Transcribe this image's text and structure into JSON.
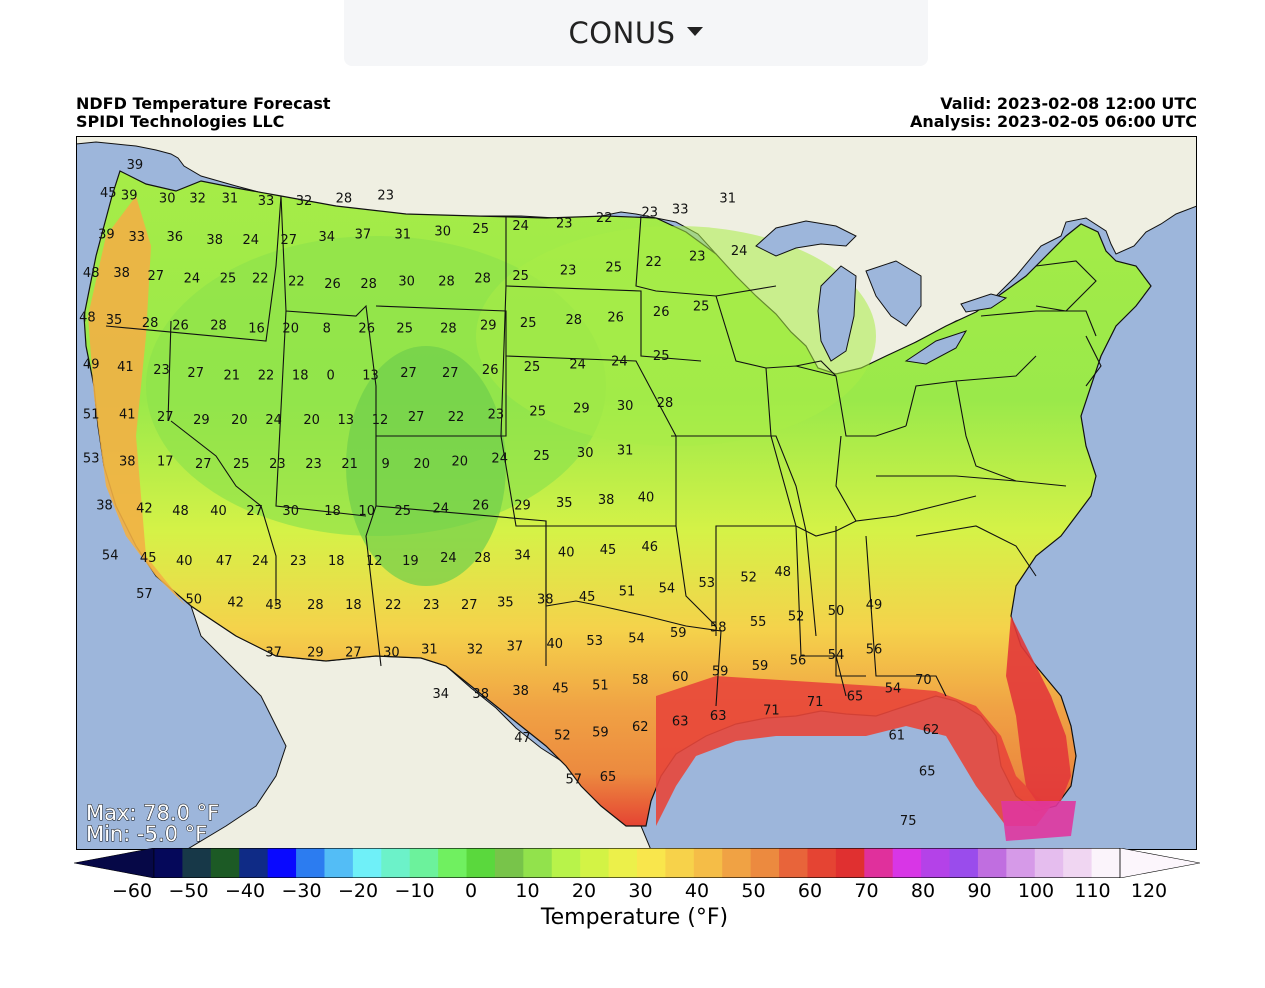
{
  "dropdown": {
    "label": "CONUS",
    "icon": "caret-down-icon"
  },
  "header": {
    "title_line1": "NDFD Temperature Forecast",
    "title_line2": "SPIDI Technologies LLC",
    "valid": "Valid: 2023-02-08 12:00 UTC",
    "analysis": "Analysis: 2023-02-05 06:00 UTC"
  },
  "stats": {
    "max": "Max: 78.0 °F",
    "min": "Min: -5.0 °F"
  },
  "colorbar": {
    "title": "Temperature (°F)",
    "tick_labels": [
      "−60",
      "−50",
      "−40",
      "−30",
      "−20",
      "−10",
      "0",
      "10",
      "20",
      "30",
      "40",
      "50",
      "60",
      "70",
      "80",
      "90",
      "100",
      "110",
      "120"
    ],
    "colors": [
      "#05085a",
      "#173848",
      "#1c5a25",
      "#0f2b86",
      "#0909ff",
      "#2c7cf0",
      "#53bdf6",
      "#6ff0f8",
      "#6cf2c9",
      "#6cf29c",
      "#70f060",
      "#5ad83d",
      "#78c44a",
      "#92e24c",
      "#b8f34a",
      "#d3f345",
      "#ecf04a",
      "#f9e64c",
      "#f7d24a",
      "#f5bd47",
      "#f0a244",
      "#ec8a3f",
      "#e8643a",
      "#e54433",
      "#e03030",
      "#e0309c",
      "#d836e6",
      "#b442e8",
      "#9a4cec",
      "#c06ee0",
      "#d69ae8",
      "#e5bdee",
      "#f0d6f2",
      "#fbf4fb"
    ],
    "extend_min_color": "#060847",
    "extend_max_color": "#fcf6fc"
  },
  "chart_data": {
    "type": "map",
    "variable": "Temperature (°F)",
    "region": "CONUS",
    "max": 78.0,
    "min": -5.0,
    "colorbar_range": [
      -60,
      120
    ],
    "station_labels": [
      {
        "lon": -122.7,
        "lat": 48.8,
        "v": "39"
      },
      {
        "lon": -124.1,
        "lat": 47.8,
        "v": "45"
      },
      {
        "lon": -123.0,
        "lat": 47.7,
        "v": "39"
      },
      {
        "lon": -121.0,
        "lat": 47.6,
        "v": "30"
      },
      {
        "lon": -119.4,
        "lat": 47.6,
        "v": "32"
      },
      {
        "lon": -117.7,
        "lat": 47.6,
        "v": "31"
      },
      {
        "lon": -115.8,
        "lat": 47.5,
        "v": "33"
      },
      {
        "lon": -113.8,
        "lat": 47.5,
        "v": "32"
      },
      {
        "lon": -111.7,
        "lat": 47.6,
        "v": "28"
      },
      {
        "lon": -109.5,
        "lat": 47.7,
        "v": "23"
      },
      {
        "lon": -124.2,
        "lat": 46.3,
        "v": "39"
      },
      {
        "lon": -122.6,
        "lat": 46.2,
        "v": "33"
      },
      {
        "lon": -120.6,
        "lat": 46.2,
        "v": "36"
      },
      {
        "lon": -118.5,
        "lat": 46.1,
        "v": "38"
      },
      {
        "lon": -116.6,
        "lat": 46.1,
        "v": "24"
      },
      {
        "lon": -114.6,
        "lat": 46.1,
        "v": "27"
      },
      {
        "lon": -112.6,
        "lat": 46.2,
        "v": "34"
      },
      {
        "lon": -110.7,
        "lat": 46.3,
        "v": "37"
      },
      {
        "lon": -108.6,
        "lat": 46.3,
        "v": "31"
      },
      {
        "lon": -106.5,
        "lat": 46.4,
        "v": "30"
      },
      {
        "lon": -104.5,
        "lat": 46.5,
        "v": "25"
      },
      {
        "lon": -102.4,
        "lat": 46.6,
        "v": "24"
      },
      {
        "lon": -100.1,
        "lat": 46.7,
        "v": "23"
      },
      {
        "lon": -98.0,
        "lat": 46.9,
        "v": "22"
      },
      {
        "lon": -95.6,
        "lat": 47.1,
        "v": "23"
      },
      {
        "lon": -94.0,
        "lat": 47.2,
        "v": "33"
      },
      {
        "lon": -91.5,
        "lat": 47.6,
        "v": "31"
      },
      {
        "lon": -125.0,
        "lat": 44.9,
        "v": "48"
      },
      {
        "lon": -123.4,
        "lat": 44.9,
        "v": "38"
      },
      {
        "lon": -121.6,
        "lat": 44.8,
        "v": "27"
      },
      {
        "lon": -119.7,
        "lat": 44.7,
        "v": "24"
      },
      {
        "lon": -117.8,
        "lat": 44.7,
        "v": "25"
      },
      {
        "lon": -116.1,
        "lat": 44.7,
        "v": "22"
      },
      {
        "lon": -114.2,
        "lat": 44.6,
        "v": "22"
      },
      {
        "lon": -112.3,
        "lat": 44.5,
        "v": "26"
      },
      {
        "lon": -110.4,
        "lat": 44.5,
        "v": "28"
      },
      {
        "lon": -108.4,
        "lat": 44.6,
        "v": "30"
      },
      {
        "lon": -106.3,
        "lat": 44.6,
        "v": "28"
      },
      {
        "lon": -104.4,
        "lat": 44.7,
        "v": "28"
      },
      {
        "lon": -102.4,
        "lat": 44.8,
        "v": "25"
      },
      {
        "lon": -99.9,
        "lat": 45.0,
        "v": "23"
      },
      {
        "lon": -97.5,
        "lat": 45.1,
        "v": "25"
      },
      {
        "lon": -95.4,
        "lat": 45.3,
        "v": "22"
      },
      {
        "lon": -93.1,
        "lat": 45.5,
        "v": "23"
      },
      {
        "lon": -90.9,
        "lat": 45.7,
        "v": "24"
      },
      {
        "lon": -125.2,
        "lat": 43.3,
        "v": "48"
      },
      {
        "lon": -123.8,
        "lat": 43.2,
        "v": "35"
      },
      {
        "lon": -121.9,
        "lat": 43.1,
        "v": "28"
      },
      {
        "lon": -120.3,
        "lat": 43.0,
        "v": "26"
      },
      {
        "lon": -118.3,
        "lat": 43.0,
        "v": "28"
      },
      {
        "lon": -116.3,
        "lat": 42.9,
        "v": "16"
      },
      {
        "lon": -114.5,
        "lat": 42.9,
        "v": "20"
      },
      {
        "lon": -112.6,
        "lat": 42.9,
        "v": "8"
      },
      {
        "lon": -110.5,
        "lat": 42.9,
        "v": "26"
      },
      {
        "lon": -108.5,
        "lat": 42.9,
        "v": "25"
      },
      {
        "lon": -106.2,
        "lat": 42.9,
        "v": "28"
      },
      {
        "lon": -104.1,
        "lat": 43.0,
        "v": "29"
      },
      {
        "lon": -102.0,
        "lat": 43.1,
        "v": "25"
      },
      {
        "lon": -99.6,
        "lat": 43.2,
        "v": "28"
      },
      {
        "lon": -97.4,
        "lat": 43.3,
        "v": "26"
      },
      {
        "lon": -95.0,
        "lat": 43.5,
        "v": "26"
      },
      {
        "lon": -92.9,
        "lat": 43.7,
        "v": "25"
      },
      {
        "lon": -125.0,
        "lat": 41.6,
        "v": "49"
      },
      {
        "lon": -123.2,
        "lat": 41.5,
        "v": "41"
      },
      {
        "lon": -121.3,
        "lat": 41.4,
        "v": "23"
      },
      {
        "lon": -119.5,
        "lat": 41.3,
        "v": "27"
      },
      {
        "lon": -117.6,
        "lat": 41.2,
        "v": "21"
      },
      {
        "lon": -115.8,
        "lat": 41.2,
        "v": "22"
      },
      {
        "lon": -114.0,
        "lat": 41.2,
        "v": "18"
      },
      {
        "lon": -112.4,
        "lat": 41.2,
        "v": "0"
      },
      {
        "lon": -110.3,
        "lat": 41.2,
        "v": "13"
      },
      {
        "lon": -108.3,
        "lat": 41.3,
        "v": "27"
      },
      {
        "lon": -106.1,
        "lat": 41.3,
        "v": "27"
      },
      {
        "lon": -104.0,
        "lat": 41.4,
        "v": "26"
      },
      {
        "lon": -101.8,
        "lat": 41.5,
        "v": "25"
      },
      {
        "lon": -99.4,
        "lat": 41.6,
        "v": "24"
      },
      {
        "lon": -97.2,
        "lat": 41.7,
        "v": "24"
      },
      {
        "lon": -95.0,
        "lat": 41.9,
        "v": "25"
      },
      {
        "lon": -125.0,
        "lat": 39.8,
        "v": "51"
      },
      {
        "lon": -123.1,
        "lat": 39.8,
        "v": "41"
      },
      {
        "lon": -121.1,
        "lat": 39.7,
        "v": "27"
      },
      {
        "lon": -119.2,
        "lat": 39.6,
        "v": "29"
      },
      {
        "lon": -117.2,
        "lat": 39.6,
        "v": "20"
      },
      {
        "lon": -115.4,
        "lat": 39.6,
        "v": "24"
      },
      {
        "lon": -113.4,
        "lat": 39.6,
        "v": "20"
      },
      {
        "lon": -111.6,
        "lat": 39.6,
        "v": "13"
      },
      {
        "lon": -109.8,
        "lat": 39.6,
        "v": "12"
      },
      {
        "lon": -107.9,
        "lat": 39.7,
        "v": "27"
      },
      {
        "lon": -105.8,
        "lat": 39.7,
        "v": "22"
      },
      {
        "lon": -103.7,
        "lat": 39.8,
        "v": "23"
      },
      {
        "lon": -101.5,
        "lat": 39.9,
        "v": "25"
      },
      {
        "lon": -99.2,
        "lat": 40.0,
        "v": "29"
      },
      {
        "lon": -96.9,
        "lat": 40.1,
        "v": "30"
      },
      {
        "lon": -94.8,
        "lat": 40.2,
        "v": "28"
      },
      {
        "lon": -125.0,
        "lat": 38.2,
        "v": "53"
      },
      {
        "lon": -123.1,
        "lat": 38.1,
        "v": "38"
      },
      {
        "lon": -121.1,
        "lat": 38.1,
        "v": "17"
      },
      {
        "lon": -119.1,
        "lat": 38.0,
        "v": "27"
      },
      {
        "lon": -117.1,
        "lat": 38.0,
        "v": "25"
      },
      {
        "lon": -115.2,
        "lat": 38.0,
        "v": "23"
      },
      {
        "lon": -113.3,
        "lat": 38.0,
        "v": "23"
      },
      {
        "lon": -111.4,
        "lat": 38.0,
        "v": "21"
      },
      {
        "lon": -109.5,
        "lat": 38.0,
        "v": "9"
      },
      {
        "lon": -107.6,
        "lat": 38.0,
        "v": "20"
      },
      {
        "lon": -105.6,
        "lat": 38.1,
        "v": "20"
      },
      {
        "lon": -103.5,
        "lat": 38.2,
        "v": "24"
      },
      {
        "lon": -101.3,
        "lat": 38.3,
        "v": "25"
      },
      {
        "lon": -99.0,
        "lat": 38.4,
        "v": "30"
      },
      {
        "lon": -96.9,
        "lat": 38.5,
        "v": "31"
      },
      {
        "lon": -124.3,
        "lat": 36.5,
        "v": "38"
      },
      {
        "lon": -122.2,
        "lat": 36.4,
        "v": "42"
      },
      {
        "lon": -120.3,
        "lat": 36.3,
        "v": "48"
      },
      {
        "lon": -118.3,
        "lat": 36.3,
        "v": "40"
      },
      {
        "lon": -116.4,
        "lat": 36.3,
        "v": "27"
      },
      {
        "lon": -114.5,
        "lat": 36.3,
        "v": "30"
      },
      {
        "lon": -112.3,
        "lat": 36.3,
        "v": "18"
      },
      {
        "lon": -110.5,
        "lat": 36.3,
        "v": "10"
      },
      {
        "lon": -108.6,
        "lat": 36.3,
        "v": "25"
      },
      {
        "lon": -106.6,
        "lat": 36.4,
        "v": "24"
      },
      {
        "lon": -104.5,
        "lat": 36.5,
        "v": "26"
      },
      {
        "lon": -102.3,
        "lat": 36.5,
        "v": "29"
      },
      {
        "lon": -100.1,
        "lat": 36.6,
        "v": "35"
      },
      {
        "lon": -97.9,
        "lat": 36.7,
        "v": "38"
      },
      {
        "lon": -95.8,
        "lat": 36.8,
        "v": "40"
      },
      {
        "lon": -124.0,
        "lat": 34.7,
        "v": "54"
      },
      {
        "lon": -122.0,
        "lat": 34.6,
        "v": "45"
      },
      {
        "lon": -120.1,
        "lat": 34.5,
        "v": "40"
      },
      {
        "lon": -118.0,
        "lat": 34.5,
        "v": "47"
      },
      {
        "lon": -116.1,
        "lat": 34.5,
        "v": "24"
      },
      {
        "lon": -114.1,
        "lat": 34.5,
        "v": "23"
      },
      {
        "lon": -112.1,
        "lat": 34.5,
        "v": "18"
      },
      {
        "lon": -110.1,
        "lat": 34.5,
        "v": "12"
      },
      {
        "lon": -108.2,
        "lat": 34.5,
        "v": "19"
      },
      {
        "lon": -106.2,
        "lat": 34.6,
        "v": "24"
      },
      {
        "lon": -104.4,
        "lat": 34.6,
        "v": "28"
      },
      {
        "lon": -102.3,
        "lat": 34.7,
        "v": "34"
      },
      {
        "lon": -100.0,
        "lat": 34.8,
        "v": "40"
      },
      {
        "lon": -97.8,
        "lat": 34.9,
        "v": "45"
      },
      {
        "lon": -95.6,
        "lat": 35.0,
        "v": "46"
      },
      {
        "lon": -122.2,
        "lat": 33.3,
        "v": "57"
      },
      {
        "lon": -119.6,
        "lat": 33.1,
        "v": "50"
      },
      {
        "lon": -117.4,
        "lat": 33.0,
        "v": "42"
      },
      {
        "lon": -115.4,
        "lat": 32.9,
        "v": "43"
      },
      {
        "lon": -113.2,
        "lat": 32.9,
        "v": "28"
      },
      {
        "lon": -111.2,
        "lat": 32.9,
        "v": "18"
      },
      {
        "lon": -109.1,
        "lat": 32.9,
        "v": "22"
      },
      {
        "lon": -107.1,
        "lat": 32.9,
        "v": "23"
      },
      {
        "lon": -105.1,
        "lat": 32.9,
        "v": "27"
      },
      {
        "lon": -103.2,
        "lat": 33.0,
        "v": "35"
      },
      {
        "lon": -101.1,
        "lat": 33.1,
        "v": "38"
      },
      {
        "lon": -98.9,
        "lat": 33.2,
        "v": "45"
      },
      {
        "lon": -96.8,
        "lat": 33.4,
        "v": "51"
      },
      {
        "lon": -94.7,
        "lat": 33.5,
        "v": "54"
      },
      {
        "lon": -92.6,
        "lat": 33.7,
        "v": "53"
      },
      {
        "lon": -90.4,
        "lat": 33.9,
        "v": "52"
      },
      {
        "lon": -88.6,
        "lat": 34.1,
        "v": "48"
      },
      {
        "lon": -115.4,
        "lat": 31.2,
        "v": "37"
      },
      {
        "lon": -113.2,
        "lat": 31.2,
        "v": "29"
      },
      {
        "lon": -111.2,
        "lat": 31.2,
        "v": "27"
      },
      {
        "lon": -109.2,
        "lat": 31.2,
        "v": "30"
      },
      {
        "lon": -107.2,
        "lat": 31.3,
        "v": "31"
      },
      {
        "lon": -104.8,
        "lat": 31.3,
        "v": "32"
      },
      {
        "lon": -102.7,
        "lat": 31.4,
        "v": "37"
      },
      {
        "lon": -100.6,
        "lat": 31.5,
        "v": "40"
      },
      {
        "lon": -98.5,
        "lat": 31.6,
        "v": "53"
      },
      {
        "lon": -96.3,
        "lat": 31.7,
        "v": "54"
      },
      {
        "lon": -94.1,
        "lat": 31.9,
        "v": "59"
      },
      {
        "lon": -92.0,
        "lat": 32.1,
        "v": "58"
      },
      {
        "lon": -89.9,
        "lat": 32.3,
        "v": "55"
      },
      {
        "lon": -87.9,
        "lat": 32.5,
        "v": "52"
      },
      {
        "lon": -85.8,
        "lat": 32.7,
        "v": "50"
      },
      {
        "lon": -83.8,
        "lat": 32.9,
        "v": "49"
      },
      {
        "lon": -106.6,
        "lat": 29.7,
        "v": "34"
      },
      {
        "lon": -104.5,
        "lat": 29.7,
        "v": "38"
      },
      {
        "lon": -102.4,
        "lat": 29.8,
        "v": "38"
      },
      {
        "lon": -100.3,
        "lat": 29.9,
        "v": "45"
      },
      {
        "lon": -98.2,
        "lat": 30.0,
        "v": "51"
      },
      {
        "lon": -96.1,
        "lat": 30.2,
        "v": "58"
      },
      {
        "lon": -94.0,
        "lat": 30.3,
        "v": "60"
      },
      {
        "lon": -91.9,
        "lat": 30.5,
        "v": "59"
      },
      {
        "lon": -89.8,
        "lat": 30.7,
        "v": "59"
      },
      {
        "lon": -87.8,
        "lat": 30.9,
        "v": "56"
      },
      {
        "lon": -85.8,
        "lat": 31.1,
        "v": "54"
      },
      {
        "lon": -83.8,
        "lat": 31.3,
        "v": "56"
      },
      {
        "lon": -102.3,
        "lat": 28.1,
        "v": "47"
      },
      {
        "lon": -100.2,
        "lat": 28.2,
        "v": "52"
      },
      {
        "lon": -98.2,
        "lat": 28.3,
        "v": "59"
      },
      {
        "lon": -96.1,
        "lat": 28.5,
        "v": "62"
      },
      {
        "lon": -94.0,
        "lat": 28.7,
        "v": "63"
      },
      {
        "lon": -92.0,
        "lat": 28.9,
        "v": "63"
      },
      {
        "lon": -89.2,
        "lat": 29.1,
        "v": "71"
      },
      {
        "lon": -86.9,
        "lat": 29.4,
        "v": "71"
      },
      {
        "lon": -84.8,
        "lat": 29.6,
        "v": "65"
      },
      {
        "lon": -82.8,
        "lat": 29.9,
        "v": "54"
      },
      {
        "lon": -81.2,
        "lat": 30.2,
        "v": "70"
      },
      {
        "lon": -99.6,
        "lat": 26.6,
        "v": "57"
      },
      {
        "lon": -97.8,
        "lat": 26.7,
        "v": "65"
      },
      {
        "lon": -82.6,
        "lat": 28.2,
        "v": "61"
      },
      {
        "lon": -80.8,
        "lat": 28.4,
        "v": "62"
      },
      {
        "lon": -81.0,
        "lat": 26.9,
        "v": "65"
      },
      {
        "lon": -82.0,
        "lat": 25.1,
        "v": "75"
      }
    ]
  }
}
